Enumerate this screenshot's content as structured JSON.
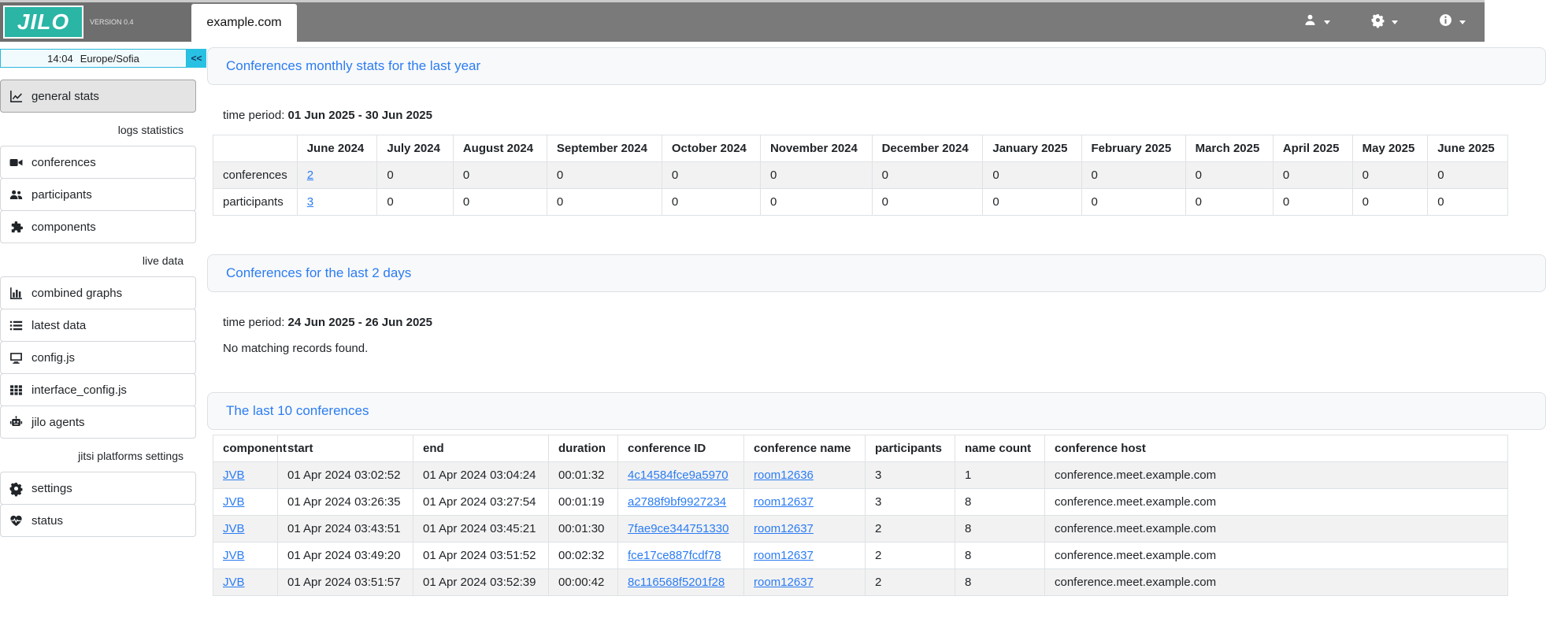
{
  "theme": {
    "brand_teal": "#2ab5a5",
    "navbar_gray": "#7a7a7a",
    "accent_blue": "#2b7cf3",
    "cyan_accent": "#29c1e3",
    "row_stripe": "#f2f2f2"
  },
  "navbar": {
    "logo_text": "JILO",
    "version": "VERSION 0.4",
    "tab": "example.com",
    "menus": [
      {
        "icon": "user"
      },
      {
        "icon": "gear"
      },
      {
        "icon": "info"
      }
    ]
  },
  "sidebar": {
    "clock": "14:04",
    "timezone": "Europe/Sofia",
    "collapse": "<<",
    "section_labels": [
      "logs statistics",
      "live data",
      "jitsi platforms settings"
    ],
    "items": [
      {
        "label": "general stats",
        "icon": "chart-line",
        "active": true
      },
      {
        "label": "conferences",
        "icon": "video-camera"
      },
      {
        "label": "participants",
        "icon": "users"
      },
      {
        "label": "components",
        "icon": "puzzle"
      },
      {
        "label": "combined graphs",
        "icon": "bar-chart"
      },
      {
        "label": "latest data",
        "icon": "list"
      },
      {
        "label": "config.js",
        "icon": "monitor"
      },
      {
        "label": "interface_config.js",
        "icon": "grid"
      },
      {
        "label": "jilo agents",
        "icon": "robot"
      },
      {
        "label": "settings",
        "icon": "gear"
      },
      {
        "label": "status",
        "icon": "heart-pulse"
      }
    ]
  },
  "sections": {
    "monthly": {
      "title": "Conferences monthly stats for the last year",
      "time_period_label": "time period:",
      "time_period": "01 Jun 2025 - 30 Jun 2025",
      "table": {
        "columns": [
          "",
          "June 2024",
          "July 2024",
          "August 2024",
          "September 2024",
          "October 2024",
          "November 2024",
          "December 2024",
          "January 2025",
          "February 2025",
          "March 2025",
          "April 2025",
          "May 2025",
          "June 2025"
        ],
        "rows": [
          {
            "cells": [
              "conferences",
              {
                "text": "2",
                "link": true
              },
              "0",
              "0",
              "0",
              "0",
              "0",
              "0",
              "0",
              "0",
              "0",
              "0",
              "0",
              "0"
            ]
          },
          {
            "cells": [
              "participants",
              {
                "text": "3",
                "link": true
              },
              "0",
              "0",
              "0",
              "0",
              "0",
              "0",
              "0",
              "0",
              "0",
              "0",
              "0",
              "0"
            ]
          }
        ]
      }
    },
    "last2days": {
      "title": "Conferences for the last 2 days",
      "time_period_label": "time period:",
      "time_period": "24 Jun 2025 - 26 Jun 2025",
      "empty_message": "No matching records found."
    },
    "last10": {
      "title": "The last 10 conferences",
      "table": {
        "columns": [
          "component",
          "start",
          "end",
          "duration",
          "conference ID",
          "conference name",
          "participants",
          "name count",
          "conference host"
        ],
        "rows": [
          {
            "cells": [
              {
                "text": "JVB",
                "link": true
              },
              "01 Apr 2024 03:02:52",
              "01 Apr 2024 03:04:24",
              "00:01:32",
              {
                "text": "4c14584fce9a5970",
                "link": true
              },
              {
                "text": "room12636",
                "link": true
              },
              "3",
              "1",
              "conference.meet.example.com"
            ]
          },
          {
            "cells": [
              {
                "text": "JVB",
                "link": true
              },
              "01 Apr 2024 03:26:35",
              "01 Apr 2024 03:27:54",
              "00:01:19",
              {
                "text": "a2788f9bf9927234",
                "link": true
              },
              {
                "text": "room12637",
                "link": true
              },
              "3",
              "8",
              "conference.meet.example.com"
            ]
          },
          {
            "cells": [
              {
                "text": "JVB",
                "link": true
              },
              "01 Apr 2024 03:43:51",
              "01 Apr 2024 03:45:21",
              "00:01:30",
              {
                "text": "7fae9ce344751330",
                "link": true
              },
              {
                "text": "room12637",
                "link": true
              },
              "2",
              "8",
              "conference.meet.example.com"
            ]
          },
          {
            "cells": [
              {
                "text": "JVB",
                "link": true
              },
              "01 Apr 2024 03:49:20",
              "01 Apr 2024 03:51:52",
              "00:02:32",
              {
                "text": "fce17ce887fcdf78",
                "link": true
              },
              {
                "text": "room12637",
                "link": true
              },
              "2",
              "8",
              "conference.meet.example.com"
            ]
          },
          {
            "cells": [
              {
                "text": "JVB",
                "link": true
              },
              "01 Apr 2024 03:51:57",
              "01 Apr 2024 03:52:39",
              "00:00:42",
              {
                "text": "8c116568f5201f28",
                "link": true
              },
              {
                "text": "room12637",
                "link": true
              },
              "2",
              "8",
              "conference.meet.example.com"
            ]
          }
        ]
      }
    }
  }
}
